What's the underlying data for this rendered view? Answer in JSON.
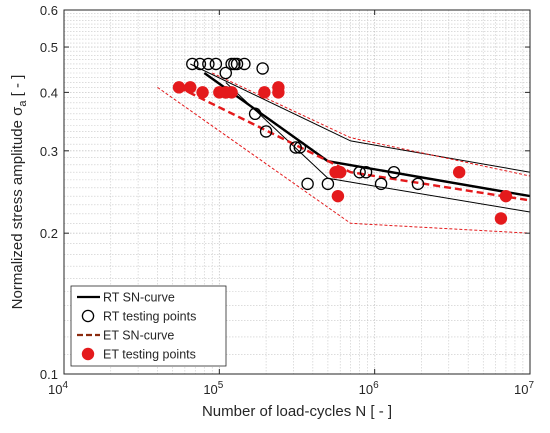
{
  "chart_data": {
    "type": "scatter",
    "title": "",
    "xlabel": "Number of load-cycles N [ - ]",
    "ylabel": "Normalized stress amplitude σ",
    "ylabel_subscript": "a",
    "ylabel_suffix": " [ - ]",
    "x_scale": "log",
    "y_scale": "log",
    "xlim": [
      10000,
      10000000
    ],
    "ylim": [
      0.1,
      0.6
    ],
    "grid": true,
    "legend_position": "bottom-left",
    "x_tick_labels": [
      {
        "value": 10000,
        "base": "10",
        "exp": "4"
      },
      {
        "value": 100000,
        "base": "10",
        "exp": "5"
      },
      {
        "value": 1000000,
        "base": "10",
        "exp": "6"
      },
      {
        "value": 10000000,
        "base": "10",
        "exp": "7"
      }
    ],
    "y_tick_labels": [
      {
        "value": 0.1,
        "label": "0.1"
      },
      {
        "value": 0.2,
        "label": "0.2"
      },
      {
        "value": 0.3,
        "label": "0.3"
      },
      {
        "value": 0.4,
        "label": "0.4"
      },
      {
        "value": 0.5,
        "label": "0.5"
      },
      {
        "value": 0.6,
        "label": "0.6"
      }
    ],
    "series": [
      {
        "name": "RT SN-curve",
        "kind": "line",
        "color": "#000000",
        "x": [
          80000,
          500000,
          10000000
        ],
        "y": [
          0.44,
          0.285,
          0.24
        ]
      },
      {
        "kind": "line",
        "style": "thin",
        "color": "#000000",
        "x": [
          65000,
          700000,
          10000000
        ],
        "y": [
          0.46,
          0.315,
          0.27
        ]
      },
      {
        "kind": "line",
        "style": "thin",
        "color": "#000000",
        "x": [
          110000,
          500000,
          10000000
        ],
        "y": [
          0.42,
          0.262,
          0.222
        ]
      },
      {
        "name": "RT testing points",
        "kind": "points",
        "color": "#000000",
        "x": [
          67000,
          75000,
          85000,
          95000,
          110000,
          120000,
          125000,
          130000,
          145000,
          190000,
          200000,
          110000,
          170000,
          310000,
          330000,
          370000,
          500000,
          800000,
          880000,
          1100000,
          1330000,
          1900000
        ],
        "y": [
          0.46,
          0.46,
          0.46,
          0.46,
          0.44,
          0.46,
          0.46,
          0.46,
          0.46,
          0.45,
          0.33,
          0.4,
          0.36,
          0.305,
          0.305,
          0.255,
          0.255,
          0.27,
          0.27,
          0.255,
          0.27,
          0.255
        ]
      },
      {
        "name": "ET SN-curve",
        "kind": "line",
        "style": "dashed",
        "color": "#e41a1c",
        "x": [
          55000,
          700000,
          10000000
        ],
        "y": [
          0.41,
          0.27,
          0.235
        ]
      },
      {
        "kind": "line",
        "style": "dotted",
        "color": "#e41a1c",
        "x": [
          90000,
          700000,
          10000000
        ],
        "y": [
          0.44,
          0.32,
          0.265
        ]
      },
      {
        "kind": "line",
        "style": "dotted",
        "color": "#e41a1c",
        "x": [
          40000,
          700000,
          10000000
        ],
        "y": [
          0.41,
          0.21,
          0.2
        ]
      },
      {
        "name": "ET testing points",
        "kind": "points",
        "filled": true,
        "color": "#e41a1c",
        "x": [
          55000,
          65000,
          78000,
          100000,
          110000,
          120000,
          195000,
          240000,
          240000,
          560000,
          580000,
          600000,
          3500000,
          6500000,
          7000000
        ],
        "y": [
          0.41,
          0.41,
          0.4,
          0.4,
          0.4,
          0.4,
          0.4,
          0.41,
          0.4,
          0.27,
          0.24,
          0.27,
          0.27,
          0.215,
          0.24
        ]
      }
    ],
    "legend": [
      {
        "label": "RT SN-curve",
        "symbol": "solid-line",
        "color": "#000000"
      },
      {
        "label": "RT testing points",
        "symbol": "open-circle",
        "color": "#000000"
      },
      {
        "label": "ET SN-curve",
        "symbol": "dashed-line",
        "color": "#8b2a0e"
      },
      {
        "label": "ET testing points",
        "symbol": "filled-circle",
        "color": "#e41a1c"
      }
    ]
  }
}
